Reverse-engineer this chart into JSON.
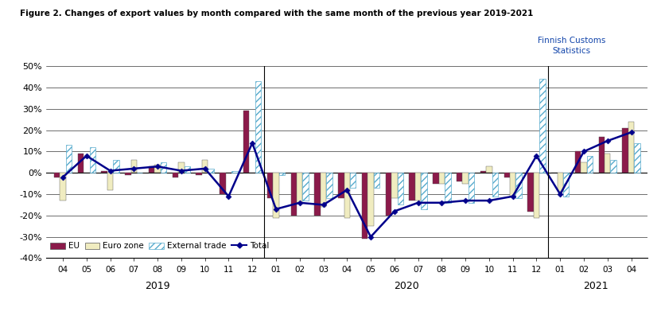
{
  "title": "Figure 2. Changes of export values by month compared with the same month of the previous year 2019-2021",
  "watermark": "Finnish Customs\nStatistics",
  "months": [
    "04",
    "05",
    "06",
    "07",
    "08",
    "09",
    "10",
    "11",
    "12",
    "01",
    "02",
    "03",
    "04",
    "05",
    "06",
    "07",
    "08",
    "09",
    "10",
    "11",
    "12",
    "01",
    "02",
    "03",
    "04"
  ],
  "eu": [
    -2,
    9,
    1,
    -1,
    3,
    -2,
    -1,
    -10,
    29,
    -12,
    -20,
    -20,
    -12,
    -31,
    -20,
    -13,
    -5,
    -4,
    1,
    -2,
    -18,
    0,
    10,
    17,
    21
  ],
  "eurozone": [
    -13,
    0,
    -8,
    6,
    4,
    5,
    6,
    0,
    0,
    -21,
    -14,
    -16,
    -21,
    -25,
    -12,
    -13,
    -5,
    -5,
    3,
    -11,
    -21,
    -9,
    5,
    9,
    24
  ],
  "external": [
    13,
    12,
    6,
    0,
    5,
    3,
    2,
    1,
    43,
    -1,
    -13,
    -12,
    -7,
    -7,
    -15,
    -17,
    -14,
    -14,
    -11,
    -12,
    44,
    -11,
    8,
    6,
    14
  ],
  "total": [
    -2,
    8,
    1,
    2,
    3,
    1,
    2,
    -11,
    14,
    -17,
    -14,
    -15,
    -8,
    -30,
    -18,
    -14,
    -14,
    -13,
    -13,
    -11,
    8,
    -10,
    10,
    15,
    19
  ],
  "ylim": [
    -40,
    50
  ],
  "yticks": [
    -40,
    -30,
    -20,
    -10,
    0,
    10,
    20,
    30,
    40,
    50
  ],
  "bar_width": 0.25,
  "eu_color": "#8B1A4A",
  "eurozone_color": "#F0ECC0",
  "external_hatch_color": "#55AACC",
  "total_color": "#00008B",
  "dividers": [
    8,
    20
  ],
  "year_centers": [
    4.0,
    14.5,
    22.5
  ],
  "year_names": [
    "2019",
    "2020",
    "2021"
  ]
}
